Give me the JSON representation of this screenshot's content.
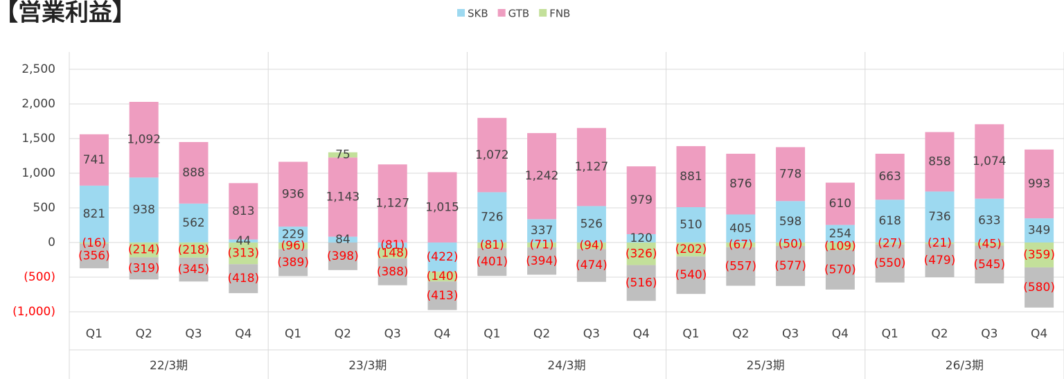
{
  "chart_data": {
    "type": "stacked_bar",
    "title": "【営業利益】",
    "categories": [
      "Q1",
      "Q2",
      "Q3",
      "Q4",
      "Q1",
      "Q2",
      "Q3",
      "Q4",
      "Q1",
      "Q2",
      "Q3",
      "Q4",
      "Q1",
      "Q2",
      "Q3",
      "Q4",
      "Q1",
      "Q2",
      "Q3",
      "Q4"
    ],
    "groups": [
      "22/3期",
      "23/3期",
      "24/3期",
      "25/3期",
      "26/3期"
    ],
    "series": [
      {
        "name": "SKB",
        "color": "#9dd9f0",
        "values": [
          821,
          938,
          562,
          44,
          229,
          84,
          -81,
          -422,
          726,
          337,
          526,
          120,
          510,
          405,
          598,
          254,
          618,
          736,
          633,
          349
        ],
        "value_labels": [
          "821",
          "938",
          "562",
          "44",
          "229",
          "84",
          "(81)",
          "(422)",
          "726",
          "337",
          "526",
          "120",
          "510",
          "405",
          "598",
          "254",
          "618",
          "736",
          "633",
          "349"
        ]
      },
      {
        "name": "GTB",
        "color": "#ee9dc0",
        "values": [
          741,
          1092,
          888,
          813,
          936,
          1143,
          1127,
          1015,
          1072,
          1242,
          1127,
          979,
          881,
          876,
          778,
          610,
          663,
          858,
          1074,
          993
        ],
        "value_labels": [
          "741",
          "1,092",
          "888",
          "813",
          "936",
          "1,143",
          "1,127",
          "1,015",
          "1,072",
          "1,242",
          "1,127",
          "979",
          "881",
          "876",
          "778",
          "610",
          "663",
          "858",
          "1,074",
          "993"
        ]
      },
      {
        "name": "FNB",
        "color": "#c3e09a",
        "values": [
          -16,
          -214,
          -218,
          -313,
          -96,
          75,
          -148,
          -140,
          -81,
          -71,
          -94,
          -326,
          -202,
          -67,
          -50,
          -109,
          -27,
          -21,
          -45,
          -359
        ],
        "value_labels": [
          "(16)",
          "(214)",
          "(218)",
          "(313)",
          "(96)",
          "75",
          "(148)",
          "(140)",
          "(81)",
          "(71)",
          "(94)",
          "(326)",
          "(202)",
          "(67)",
          "(50)",
          "(109)",
          "(27)",
          "(21)",
          "(45)",
          "(359)"
        ]
      },
      {
        "color": "#bfbfbf",
        "values": [
          -356,
          -319,
          -345,
          -418,
          -389,
          -398,
          -388,
          -413,
          -401,
          -394,
          -474,
          -516,
          -540,
          -557,
          -577,
          -570,
          -550,
          -479,
          -545,
          -580
        ],
        "value_labels": [
          "(356)",
          "(319)",
          "(345)",
          "(418)",
          "(389)",
          "(398)",
          "(388)",
          "(413)",
          "(401)",
          "(394)",
          "(474)",
          "(516)",
          "(540)",
          "(557)",
          "(577)",
          "(570)",
          "(550)",
          "(479)",
          "(545)",
          "(580)"
        ]
      }
    ],
    "ylim": [
      -1000,
      2500
    ],
    "yticks": [
      {
        "value": -1000,
        "label": "(1,000)"
      },
      {
        "value": -500,
        "label": "(500)"
      },
      0,
      500,
      {
        "value": 1000,
        "label": "1,000"
      },
      {
        "value": 1500,
        "label": "1,500"
      },
      {
        "value": 2000,
        "label": "2,000"
      },
      {
        "value": 2500,
        "label": "2,500"
      }
    ],
    "grid": true
  }
}
